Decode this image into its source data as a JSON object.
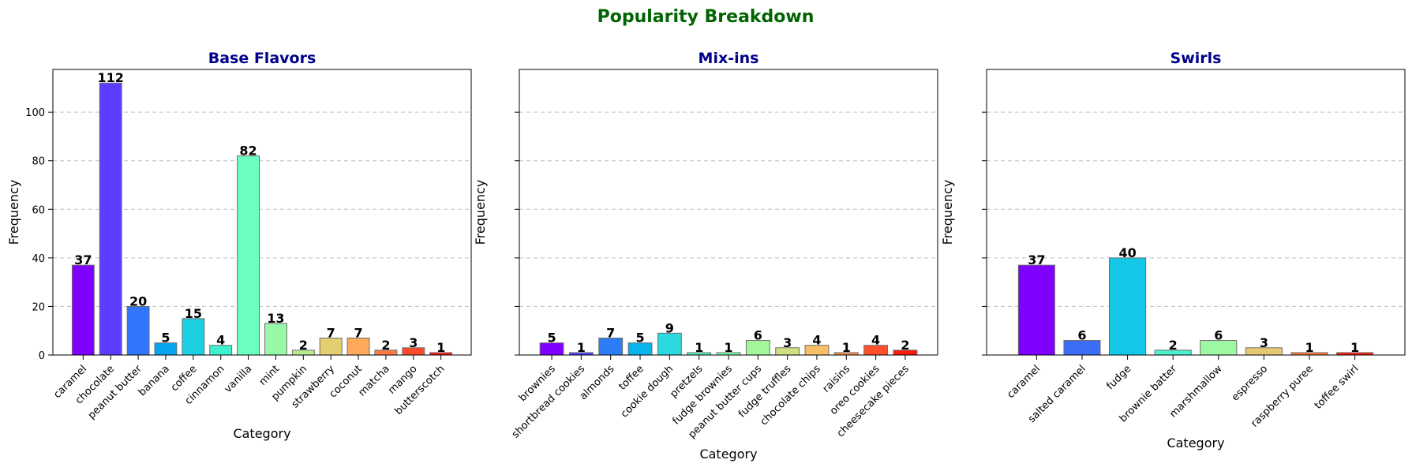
{
  "suptitle": "Popularity Breakdown",
  "colors": {
    "suptitle": "#006400",
    "panel_title": "#00008b",
    "grid": "#c0c0c0",
    "bar_edge": "#6e6e6e"
  },
  "chart_data": [
    {
      "type": "bar",
      "title": "Base Flavors",
      "xlabel": "Category",
      "ylabel": "Frequency",
      "ylim": [
        0,
        117.6
      ],
      "yticks": [
        0,
        20,
        40,
        60,
        80,
        100
      ],
      "grid": "y-dashed",
      "categories": [
        "caramel",
        "chocolate",
        "peanut butter",
        "banana",
        "coffee",
        "cinnamon",
        "vanilla",
        "mint",
        "pumpkin",
        "strawberry",
        "coconut",
        "matcha",
        "mango",
        "butterscotch"
      ],
      "values": [
        37,
        112,
        20,
        5,
        15,
        4,
        82,
        13,
        2,
        7,
        7,
        2,
        3,
        1
      ],
      "colors": [
        "#8000ff",
        "#5e3cff",
        "#3075fa",
        "#07a4f0",
        "#1dcfe2",
        "#3ff0d0",
        "#6bffbf",
        "#97f8a8",
        "#b4ec8d",
        "#e3cf70",
        "#ffaa5a",
        "#ff7a44",
        "#ff4a2a",
        "#ff1a0d"
      ]
    },
    {
      "type": "bar",
      "title": "Mix-ins",
      "xlabel": "Category",
      "ylabel": "Frequency",
      "ylim": [
        0,
        117.6
      ],
      "yticks": [
        0,
        20,
        40,
        60,
        80,
        100
      ],
      "grid": "y-dashed",
      "categories": [
        "brownies",
        "shortbread cookies",
        "almonds",
        "toffee",
        "cookie dough",
        "pretzels",
        "fudge brownies",
        "peanut butter cups",
        "fudge truffles",
        "chocolate chips",
        "raisins",
        "oreo cookies",
        "cheesecake pieces"
      ],
      "values": [
        5,
        1,
        7,
        5,
        9,
        1,
        1,
        6,
        3,
        4,
        1,
        4,
        2
      ],
      "colors": [
        "#8000ff",
        "#5240fe",
        "#2c7ef7",
        "#07b4ec",
        "#2ad8de",
        "#52f6c6",
        "#7bffb2",
        "#a4f69c",
        "#d0e081",
        "#f9bf67",
        "#ff8f4c",
        "#ff4f2b",
        "#ff1a0d"
      ]
    },
    {
      "type": "bar",
      "title": "Swirls",
      "xlabel": "Category",
      "ylabel": "Frequency",
      "ylim": [
        0,
        117.6
      ],
      "yticks": [
        0,
        20,
        40,
        60,
        80,
        100
      ],
      "grid": "y-dashed",
      "categories": [
        "caramel",
        "salted caramel",
        "fudge",
        "brownie batter",
        "marshmallow",
        "espresso",
        "raspberry puree",
        "toffee swirl"
      ],
      "values": [
        37,
        6,
        40,
        2,
        6,
        3,
        1,
        1
      ],
      "colors": [
        "#8000ff",
        "#3b6df7",
        "#12c8e6",
        "#48f2cc",
        "#9ef7a3",
        "#e6c872",
        "#ff7a44",
        "#ff1a0d"
      ]
    }
  ]
}
